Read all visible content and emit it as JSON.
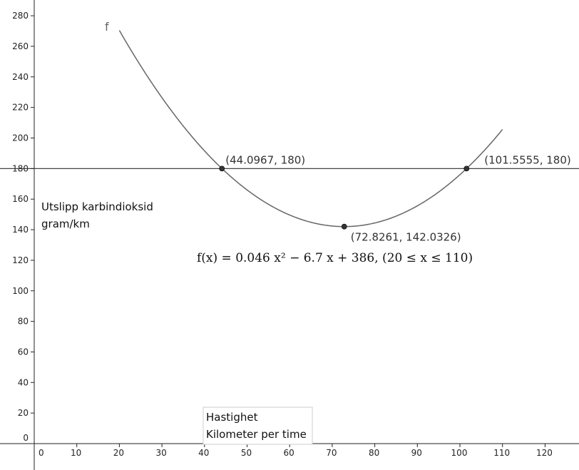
{
  "chart_data": {
    "type": "line",
    "function_name": "f",
    "formula": "f(x) = 0.046 x² − 6.7 x + 386,    (20 ≤ x ≤ 110)",
    "coefficients": {
      "a": 0.046,
      "b": -6.7,
      "c": 386
    },
    "domain": [
      20,
      110
    ],
    "horizontal_line_y": 180,
    "points": [
      {
        "x": 44.0967,
        "y": 180,
        "label": "(44.0967, 180)"
      },
      {
        "x": 72.8261,
        "y": 142.0326,
        "label": "(72.8261, 142.0326)"
      },
      {
        "x": 101.5555,
        "y": 180,
        "label": "(101.5555, 180)"
      }
    ],
    "ylabel_lines": [
      "Utslipp karbindioksid",
      "gram/km"
    ],
    "xlabel_lines": [
      "Hastighet",
      "Kilometer per time"
    ],
    "x_ticks": [
      0,
      10,
      20,
      30,
      40,
      50,
      60,
      70,
      80,
      90,
      100,
      110,
      120
    ],
    "y_ticks": [
      0,
      20,
      40,
      60,
      80,
      100,
      120,
      140,
      160,
      180,
      200,
      220,
      240,
      260,
      280
    ],
    "xlim": [
      -8,
      127
    ],
    "ylim": [
      -20,
      290
    ],
    "grid": false,
    "colors": {
      "curve": "#666666",
      "line": "#444444",
      "point": "#333333",
      "axis": "#222222"
    }
  }
}
